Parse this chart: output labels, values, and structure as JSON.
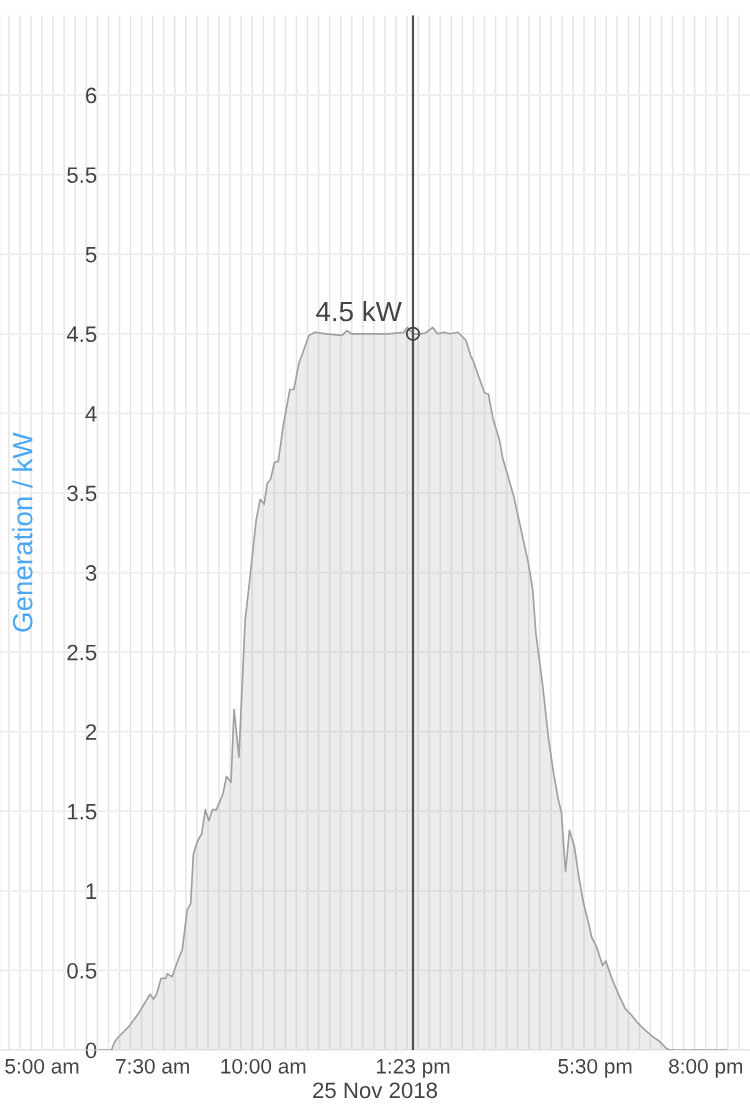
{
  "chart_data": {
    "type": "area",
    "xlabel": "25 Nov 2018",
    "ylabel": "Generation / kW",
    "grid": true,
    "x": [
      6.29,
      6.57,
      6.64,
      6.72,
      6.97,
      7.18,
      7.44,
      7.52,
      7.59,
      7.69,
      7.8,
      7.83,
      7.94,
      8.08,
      8.17,
      8.28,
      8.36,
      8.42,
      8.51,
      8.61,
      8.69,
      8.77,
      8.85,
      8.94,
      9.09,
      9.17,
      9.27,
      9.34,
      9.45,
      9.59,
      9.7,
      9.84,
      9.93,
      10.02,
      10.09,
      10.17,
      10.25,
      10.34,
      10.45,
      10.6,
      10.69,
      10.81,
      10.88,
      11.03,
      11.17,
      11.42,
      11.78,
      11.89,
      12.0,
      12.39,
      12.82,
      13.18,
      13.25,
      13.4,
      13.58,
      13.69,
      13.83,
      13.94,
      14.08,
      14.22,
      14.4,
      14.58,
      14.69,
      14.76,
      14.87,
      15.0,
      15.09,
      15.19,
      15.34,
      15.41,
      15.66,
      15.99,
      16.09,
      16.16,
      16.31,
      16.45,
      16.56,
      16.67,
      16.74,
      16.83,
      16.92,
      17.03,
      17.13,
      17.24,
      17.35,
      17.42,
      17.53,
      17.67,
      17.74,
      17.89,
      18.03,
      18.18,
      18.32,
      18.43,
      18.61,
      18.82,
      18.93,
      19.11,
      19.18,
      20.47
    ],
    "series": [
      {
        "color": "#a0a0a0",
        "values": [
          0,
          0,
          0.05,
          0.08,
          0.15,
          0.23,
          0.35,
          0.32,
          0.35,
          0.45,
          0.45,
          0.48,
          0.46,
          0.57,
          0.63,
          0.88,
          0.92,
          1.23,
          1.31,
          1.36,
          1.51,
          1.44,
          1.51,
          1.51,
          1.61,
          1.72,
          1.68,
          2.14,
          1.84,
          2.7,
          2.97,
          3.33,
          3.46,
          3.43,
          3.56,
          3.59,
          3.69,
          3.7,
          3.92,
          4.15,
          4.15,
          4.32,
          4.37,
          4.49,
          4.51,
          4.5,
          4.49,
          4.52,
          4.5,
          4.5,
          4.5,
          4.51,
          4.54,
          4.5,
          4.5,
          4.51,
          4.54,
          4.5,
          4.51,
          4.5,
          4.51,
          4.46,
          4.36,
          4.32,
          4.23,
          4.13,
          4.12,
          3.97,
          3.83,
          3.72,
          3.48,
          3.06,
          2.89,
          2.62,
          2.3,
          1.95,
          1.74,
          1.57,
          1.49,
          1.12,
          1.38,
          1.28,
          1.09,
          0.92,
          0.8,
          0.71,
          0.65,
          0.53,
          0.56,
          0.44,
          0.35,
          0.26,
          0.22,
          0.18,
          0.13,
          0.08,
          0.06,
          0.01,
          0,
          0
        ]
      }
    ],
    "xlim": [
      4.05,
      21.0
    ],
    "xticks": [
      {
        "value": 4.25,
        "label": null
      },
      {
        "value": 4.5,
        "label": null
      },
      {
        "value": 4.75,
        "label": null
      },
      {
        "value": 5,
        "label": "5:00 am"
      },
      {
        "value": 5.25,
        "label": null
      },
      {
        "value": 5.5,
        "label": null
      },
      {
        "value": 5.75,
        "label": null
      },
      {
        "value": 6,
        "label": null
      },
      {
        "value": 6.25,
        "label": null
      },
      {
        "value": 6.5,
        "label": null
      },
      {
        "value": 6.75,
        "label": null
      },
      {
        "value": 7,
        "label": null
      },
      {
        "value": 7.25,
        "label": null
      },
      {
        "value": 7.5,
        "label": "7:30 am"
      },
      {
        "value": 7.75,
        "label": null
      },
      {
        "value": 8,
        "label": null
      },
      {
        "value": 8.25,
        "label": null
      },
      {
        "value": 8.5,
        "label": null
      },
      {
        "value": 8.75,
        "label": null
      },
      {
        "value": 9,
        "label": null
      },
      {
        "value": 9.25,
        "label": null
      },
      {
        "value": 9.5,
        "label": null
      },
      {
        "value": 9.75,
        "label": null
      },
      {
        "value": 10,
        "label": "10:00 am"
      },
      {
        "value": 10.25,
        "label": null
      },
      {
        "value": 10.5,
        "label": null
      },
      {
        "value": 10.75,
        "label": null
      },
      {
        "value": 11,
        "label": null
      },
      {
        "value": 11.25,
        "label": null
      },
      {
        "value": 11.5,
        "label": null
      },
      {
        "value": 11.75,
        "label": null
      },
      {
        "value": 12,
        "label": null
      },
      {
        "value": 12.25,
        "label": null
      },
      {
        "value": 12.5,
        "label": null
      },
      {
        "value": 12.75,
        "label": null
      },
      {
        "value": 13,
        "label": null
      },
      {
        "value": 13.25,
        "label": null
      },
      {
        "value": 13.38333,
        "label": "1:23 pm"
      },
      {
        "value": 13.5,
        "label": null
      },
      {
        "value": 13.75,
        "label": null
      },
      {
        "value": 14,
        "label": null
      },
      {
        "value": 14.25,
        "label": null
      },
      {
        "value": 14.5,
        "label": null
      },
      {
        "value": 14.75,
        "label": null
      },
      {
        "value": 15,
        "label": null
      },
      {
        "value": 15.25,
        "label": null
      },
      {
        "value": 15.5,
        "label": null
      },
      {
        "value": 15.75,
        "label": null
      },
      {
        "value": 16,
        "label": null
      },
      {
        "value": 16.25,
        "label": null
      },
      {
        "value": 16.5,
        "label": null
      },
      {
        "value": 16.75,
        "label": null
      },
      {
        "value": 17,
        "label": null
      },
      {
        "value": 17.25,
        "label": null
      },
      {
        "value": 17.5,
        "label": "5:30 pm"
      },
      {
        "value": 17.75,
        "label": null
      },
      {
        "value": 18,
        "label": null
      },
      {
        "value": 18.25,
        "label": null
      },
      {
        "value": 18.5,
        "label": null
      },
      {
        "value": 18.75,
        "label": null
      },
      {
        "value": 19,
        "label": null
      },
      {
        "value": 19.25,
        "label": null
      },
      {
        "value": 19.5,
        "label": null
      },
      {
        "value": 19.75,
        "label": null
      },
      {
        "value": 20,
        "label": "8:00 pm"
      },
      {
        "value": 20.25,
        "label": null
      },
      {
        "value": 20.5,
        "label": null
      },
      {
        "value": 20.75,
        "label": null
      }
    ],
    "ylim": [
      0,
      6.5
    ],
    "yticks": [
      0,
      0.5,
      1,
      1.5,
      2,
      2.5,
      3,
      3.5,
      4,
      4.5,
      5,
      5.5,
      6
    ],
    "ref_lines": [
      {
        "axis": "x",
        "value": 13.38333,
        "color": "#505050"
      }
    ],
    "annotations": [
      {
        "text": "4.5 kW",
        "x": 13.38333,
        "y": 4.5
      }
    ]
  }
}
